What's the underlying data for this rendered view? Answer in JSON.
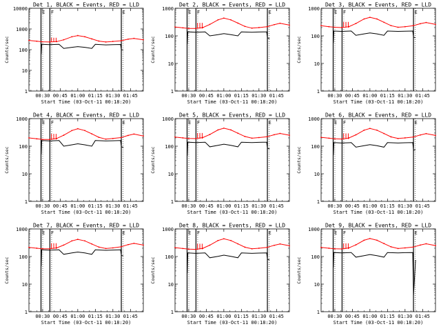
{
  "chart_data": {
    "type": "line",
    "shared": {
      "ylabel": "Counts/sec",
      "xlabel": "Start Time (03-Oct-11 00:18:20)",
      "x_ticks": [
        "00:30",
        "00:45",
        "01:00",
        "01:15",
        "01:30",
        "01:45"
      ],
      "x_tick_minutes": [
        30,
        45,
        60,
        75,
        90,
        105
      ],
      "xlim_minutes": [
        18.3,
        116
      ],
      "yscale": "log",
      "markers": [
        {
          "label": "E",
          "minute": 28.6
        },
        {
          "label": "F",
          "minute": 36.2
        },
        {
          "label": "E",
          "minute": 97.2
        }
      ],
      "series_colors": {
        "events": "#000000",
        "lld": "#ff0000"
      },
      "grid": false
    },
    "panels": [
      {
        "title": "Det 1, BLACK = Events, RED = LLD",
        "ylim": [
          1,
          10000
        ],
        "y_tick_labels": [
          "1",
          "10",
          "100",
          "1000",
          "10000"
        ],
        "lld": [
          [
            18.3,
            280
          ],
          [
            25,
            255
          ],
          [
            30,
            240
          ],
          [
            36,
            235
          ],
          [
            42,
            245
          ],
          [
            48,
            300
          ],
          [
            55,
            420
          ],
          [
            60,
            480
          ],
          [
            66,
            420
          ],
          [
            72,
            330
          ],
          [
            78,
            260
          ],
          [
            84,
            235
          ],
          [
            90,
            250
          ],
          [
            97,
            270
          ],
          [
            103,
            320
          ],
          [
            108,
            350
          ],
          [
            116,
            300
          ]
        ],
        "events": [
          [
            28.8,
            60
          ],
          [
            29.2,
            180
          ],
          [
            36,
            175
          ],
          [
            44,
            180
          ],
          [
            48,
            115
          ],
          [
            55,
            130
          ],
          [
            60,
            140
          ],
          [
            66,
            130
          ],
          [
            72,
            115
          ],
          [
            75,
            180
          ],
          [
            84,
            170
          ],
          [
            90,
            175
          ],
          [
            96.6,
            178
          ],
          [
            97.2,
            100
          ],
          [
            99,
            95
          ]
        ]
      },
      {
        "title": "Det 2, BLACK = Events, RED = LLD",
        "ylim": [
          1,
          1000
        ],
        "y_tick_labels": [
          "1",
          "10",
          "100",
          "1000"
        ],
        "lld": [
          [
            18.3,
            210
          ],
          [
            25,
            195
          ],
          [
            30,
            185
          ],
          [
            36,
            185
          ],
          [
            42,
            200
          ],
          [
            48,
            260
          ],
          [
            55,
            380
          ],
          [
            60,
            440
          ],
          [
            66,
            380
          ],
          [
            72,
            290
          ],
          [
            78,
            220
          ],
          [
            84,
            190
          ],
          [
            90,
            200
          ],
          [
            97,
            215
          ],
          [
            103,
            255
          ],
          [
            108,
            285
          ],
          [
            116,
            245
          ]
        ],
        "events": [
          [
            28.8,
            50
          ],
          [
            29.2,
            140
          ],
          [
            36,
            135
          ],
          [
            44,
            140
          ],
          [
            48,
            100
          ],
          [
            55,
            110
          ],
          [
            60,
            120
          ],
          [
            66,
            110
          ],
          [
            72,
            100
          ],
          [
            75,
            140
          ],
          [
            84,
            135
          ],
          [
            90,
            138
          ],
          [
            96.6,
            140
          ],
          [
            97.2,
            85
          ],
          [
            99,
            80
          ]
        ]
      },
      {
        "title": "Det 3, BLACK = Events, RED = LLD",
        "ylim": [
          1,
          1000
        ],
        "y_tick_labels": [
          "1",
          "10",
          "100",
          "1000"
        ],
        "lld": [
          [
            18.3,
            235
          ],
          [
            25,
            215
          ],
          [
            30,
            205
          ],
          [
            36,
            200
          ],
          [
            42,
            215
          ],
          [
            48,
            280
          ],
          [
            55,
            410
          ],
          [
            60,
            470
          ],
          [
            66,
            410
          ],
          [
            72,
            310
          ],
          [
            78,
            235
          ],
          [
            84,
            205
          ],
          [
            90,
            215
          ],
          [
            97,
            235
          ],
          [
            103,
            275
          ],
          [
            108,
            305
          ],
          [
            116,
            260
          ]
        ],
        "events": [
          [
            28.8,
            55
          ],
          [
            29.2,
            150
          ],
          [
            36,
            145
          ],
          [
            44,
            150
          ],
          [
            48,
            105
          ],
          [
            55,
            118
          ],
          [
            60,
            128
          ],
          [
            66,
            118
          ],
          [
            72,
            105
          ],
          [
            75,
            150
          ],
          [
            84,
            145
          ],
          [
            90,
            148
          ],
          [
            96.6,
            150
          ],
          [
            97.2,
            90
          ],
          [
            99,
            85
          ]
        ]
      },
      {
        "title": "Det 4, BLACK = Events, RED = LLD",
        "ylim": [
          1,
          1000
        ],
        "y_tick_labels": [
          "1",
          "10",
          "100",
          "1000"
        ],
        "lld": [
          [
            18.3,
            200
          ],
          [
            25,
            185
          ],
          [
            30,
            175
          ],
          [
            36,
            175
          ],
          [
            42,
            190
          ],
          [
            48,
            250
          ],
          [
            55,
            370
          ],
          [
            60,
            430
          ],
          [
            66,
            370
          ],
          [
            72,
            280
          ],
          [
            78,
            210
          ],
          [
            84,
            180
          ],
          [
            90,
            190
          ],
          [
            97,
            205
          ],
          [
            103,
            245
          ],
          [
            108,
            275
          ],
          [
            116,
            235
          ]
        ],
        "events": [
          [
            28.8,
            50
          ],
          [
            29.2,
            160
          ],
          [
            36,
            155
          ],
          [
            44,
            160
          ],
          [
            48,
            100
          ],
          [
            55,
            112
          ],
          [
            60,
            122
          ],
          [
            66,
            112
          ],
          [
            72,
            100
          ],
          [
            75,
            160
          ],
          [
            84,
            155
          ],
          [
            90,
            158
          ],
          [
            96.6,
            160
          ],
          [
            97.2,
            95
          ],
          [
            99,
            90
          ]
        ]
      },
      {
        "title": "Det 5, BLACK = Events, RED = LLD",
        "ylim": [
          1,
          1000
        ],
        "y_tick_labels": [
          "1",
          "10",
          "100",
          "1000"
        ],
        "lld": [
          [
            18.3,
            215
          ],
          [
            25,
            200
          ],
          [
            30,
            190
          ],
          [
            36,
            188
          ],
          [
            42,
            205
          ],
          [
            48,
            265
          ],
          [
            55,
            390
          ],
          [
            60,
            450
          ],
          [
            66,
            390
          ],
          [
            72,
            295
          ],
          [
            78,
            225
          ],
          [
            84,
            195
          ],
          [
            90,
            205
          ],
          [
            97,
            220
          ],
          [
            103,
            260
          ],
          [
            108,
            290
          ],
          [
            116,
            250
          ]
        ],
        "events": [
          [
            28.8,
            45
          ],
          [
            29.2,
            140
          ],
          [
            36,
            135
          ],
          [
            44,
            140
          ],
          [
            48,
            95
          ],
          [
            55,
            108
          ],
          [
            60,
            118
          ],
          [
            66,
            108
          ],
          [
            72,
            95
          ],
          [
            75,
            140
          ],
          [
            84,
            135
          ],
          [
            90,
            138
          ],
          [
            96.6,
            140
          ],
          [
            97.2,
            85
          ],
          [
            99,
            80
          ]
        ]
      },
      {
        "title": "Det 6, BLACK = Events, RED = LLD",
        "ylim": [
          1,
          1000
        ],
        "y_tick_labels": [
          "1",
          "10",
          "100",
          "1000"
        ],
        "lld": [
          [
            18.3,
            210
          ],
          [
            25,
            195
          ],
          [
            30,
            185
          ],
          [
            36,
            182
          ],
          [
            42,
            198
          ],
          [
            48,
            258
          ],
          [
            55,
            380
          ],
          [
            60,
            440
          ],
          [
            66,
            380
          ],
          [
            72,
            288
          ],
          [
            78,
            218
          ],
          [
            84,
            190
          ],
          [
            90,
            200
          ],
          [
            97,
            215
          ],
          [
            103,
            255
          ],
          [
            108,
            285
          ],
          [
            116,
            245
          ]
        ],
        "events": [
          [
            28.8,
            48
          ],
          [
            29.2,
            135
          ],
          [
            36,
            130
          ],
          [
            44,
            135
          ],
          [
            48,
            92
          ],
          [
            55,
            104
          ],
          [
            60,
            114
          ],
          [
            66,
            104
          ],
          [
            72,
            92
          ],
          [
            75,
            135
          ],
          [
            84,
            130
          ],
          [
            90,
            133
          ],
          [
            96.6,
            135
          ],
          [
            97.2,
            72
          ],
          [
            99,
            75
          ]
        ]
      },
      {
        "title": "Det 7, BLACK = Events, RED = LLD",
        "ylim": [
          1,
          1000
        ],
        "y_tick_labels": [
          "1",
          "10",
          "100",
          "1000"
        ],
        "lld": [
          [
            18.3,
            215
          ],
          [
            25,
            200
          ],
          [
            30,
            192
          ],
          [
            36,
            190
          ],
          [
            42,
            205
          ],
          [
            48,
            260
          ],
          [
            55,
            370
          ],
          [
            60,
            420
          ],
          [
            66,
            370
          ],
          [
            72,
            285
          ],
          [
            78,
            220
          ],
          [
            84,
            195
          ],
          [
            90,
            205
          ],
          [
            97,
            225
          ],
          [
            103,
            270
          ],
          [
            108,
            300
          ],
          [
            116,
            260
          ]
        ],
        "events": [
          [
            28.8,
            45
          ],
          [
            29.2,
            175
          ],
          [
            36,
            170
          ],
          [
            44,
            175
          ],
          [
            48,
            120
          ],
          [
            55,
            135
          ],
          [
            60,
            145
          ],
          [
            66,
            135
          ],
          [
            72,
            120
          ],
          [
            75,
            175
          ],
          [
            84,
            168
          ],
          [
            90,
            172
          ],
          [
            96.6,
            175
          ],
          [
            97.2,
            110
          ],
          [
            99,
            105
          ]
        ]
      },
      {
        "title": "Det 8, BLACK = Events, RED = LLD",
        "ylim": [
          1,
          1000
        ],
        "y_tick_labels": [
          "1",
          "10",
          "100",
          "1000"
        ],
        "lld": [
          [
            18.3,
            210
          ],
          [
            25,
            195
          ],
          [
            30,
            185
          ],
          [
            36,
            182
          ],
          [
            42,
            198
          ],
          [
            48,
            258
          ],
          [
            55,
            380
          ],
          [
            60,
            440
          ],
          [
            66,
            380
          ],
          [
            72,
            288
          ],
          [
            78,
            218
          ],
          [
            84,
            190
          ],
          [
            90,
            200
          ],
          [
            97,
            215
          ],
          [
            103,
            255
          ],
          [
            108,
            285
          ],
          [
            116,
            245
          ]
        ],
        "events": [
          [
            28.8,
            25
          ],
          [
            29.2,
            135
          ],
          [
            36,
            130
          ],
          [
            44,
            135
          ],
          [
            48,
            90
          ],
          [
            55,
            102
          ],
          [
            60,
            112
          ],
          [
            66,
            102
          ],
          [
            72,
            90
          ],
          [
            75,
            135
          ],
          [
            84,
            130
          ],
          [
            90,
            133
          ],
          [
            96.6,
            135
          ],
          [
            97.2,
            80
          ],
          [
            99,
            75
          ]
        ]
      },
      {
        "title": "Det 9, BLACK = Events, RED = LLD",
        "ylim": [
          1,
          1000
        ],
        "y_tick_labels": [
          "1",
          "10",
          "100",
          "1000"
        ],
        "lld": [
          [
            18.3,
            215
          ],
          [
            25,
            200
          ],
          [
            30,
            190
          ],
          [
            36,
            188
          ],
          [
            42,
            205
          ],
          [
            48,
            265
          ],
          [
            55,
            390
          ],
          [
            60,
            450
          ],
          [
            66,
            390
          ],
          [
            72,
            295
          ],
          [
            78,
            225
          ],
          [
            84,
            195
          ],
          [
            90,
            205
          ],
          [
            97,
            220
          ],
          [
            103,
            260
          ],
          [
            108,
            290
          ],
          [
            116,
            250
          ]
        ],
        "events": [
          [
            28.8,
            40
          ],
          [
            29.2,
            140
          ],
          [
            36,
            135
          ],
          [
            44,
            140
          ],
          [
            48,
            95
          ],
          [
            55,
            108
          ],
          [
            60,
            118
          ],
          [
            66,
            108
          ],
          [
            72,
            95
          ],
          [
            75,
            140
          ],
          [
            84,
            135
          ],
          [
            90,
            138
          ],
          [
            96.6,
            140
          ],
          [
            97.2,
            4
          ],
          [
            99,
            75
          ]
        ]
      }
    ]
  }
}
